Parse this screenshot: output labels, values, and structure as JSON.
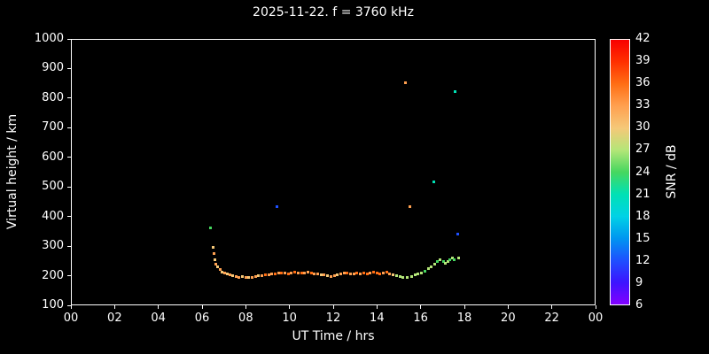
{
  "chart_data": {
    "type": "scatter",
    "title": "2025-11-22. f = 3760 kHz",
    "xlabel": "UT Time / hrs",
    "ylabel": "Virtual height / km",
    "xlim": [
      0,
      24
    ],
    "ylim": [
      100,
      1000
    ],
    "grid": false,
    "background_color": "#000000",
    "text_color": "#ffffff",
    "x_ticks": [
      {
        "value": 0,
        "label": "00"
      },
      {
        "value": 2,
        "label": "02"
      },
      {
        "value": 4,
        "label": "04"
      },
      {
        "value": 6,
        "label": "06"
      },
      {
        "value": 8,
        "label": "08"
      },
      {
        "value": 10,
        "label": "10"
      },
      {
        "value": 12,
        "label": "12"
      },
      {
        "value": 14,
        "label": "14"
      },
      {
        "value": 16,
        "label": "16"
      },
      {
        "value": 18,
        "label": "18"
      },
      {
        "value": 20,
        "label": "20"
      },
      {
        "value": 22,
        "label": "22"
      },
      {
        "value": 24,
        "label": "00"
      }
    ],
    "y_ticks": [
      100,
      200,
      300,
      400,
      500,
      600,
      700,
      800,
      900,
      1000
    ],
    "colorbar": {
      "label": "SNR / dB",
      "min": 6,
      "max": 42,
      "ticks": [
        6,
        9,
        12,
        15,
        18,
        21,
        24,
        27,
        30,
        33,
        36,
        39,
        42
      ],
      "stops": [
        [
          6,
          "#8200ff"
        ],
        [
          9,
          "#3c14ff"
        ],
        [
          12,
          "#1e50ff"
        ],
        [
          15,
          "#0096f0"
        ],
        [
          18,
          "#00d2e6"
        ],
        [
          21,
          "#00e1b4"
        ],
        [
          24,
          "#46d75f"
        ],
        [
          27,
          "#b4e678"
        ],
        [
          30,
          "#f5c878"
        ],
        [
          33,
          "#ffa050"
        ],
        [
          36,
          "#ff6e14"
        ],
        [
          39,
          "#ff3000"
        ],
        [
          42,
          "#f80000"
        ]
      ]
    },
    "points_format": "[ut_hour, virtual_height_km, snr_db]",
    "points": [
      [
        6.35,
        365,
        24
      ],
      [
        6.45,
        298,
        30
      ],
      [
        6.5,
        278,
        33
      ],
      [
        6.55,
        258,
        30
      ],
      [
        6.6,
        243,
        33
      ],
      [
        6.68,
        232,
        30
      ],
      [
        6.78,
        224,
        33
      ],
      [
        6.88,
        216,
        30
      ],
      [
        6.98,
        212,
        33
      ],
      [
        7.1,
        208,
        30
      ],
      [
        7.22,
        205,
        33
      ],
      [
        7.35,
        202,
        30
      ],
      [
        7.5,
        200,
        33
      ],
      [
        7.65,
        198,
        33
      ],
      [
        7.8,
        200,
        30
      ],
      [
        7.95,
        197,
        33
      ],
      [
        8.1,
        196,
        30
      ],
      [
        8.25,
        198,
        33
      ],
      [
        8.4,
        200,
        33
      ],
      [
        8.55,
        202,
        30
      ],
      [
        8.7,
        204,
        33
      ],
      [
        8.85,
        206,
        36
      ],
      [
        9.0,
        207,
        33
      ],
      [
        9.15,
        209,
        33
      ],
      [
        9.3,
        210,
        36
      ],
      [
        9.4,
        435,
        12
      ],
      [
        9.45,
        211,
        33
      ],
      [
        9.6,
        213,
        36
      ],
      [
        9.75,
        211,
        33
      ],
      [
        9.9,
        210,
        36
      ],
      [
        10.05,
        212,
        33
      ],
      [
        10.2,
        214,
        36
      ],
      [
        10.35,
        212,
        33
      ],
      [
        10.5,
        211,
        36
      ],
      [
        10.65,
        213,
        33
      ],
      [
        10.8,
        214,
        33
      ],
      [
        10.95,
        212,
        36
      ],
      [
        11.1,
        210,
        33
      ],
      [
        11.25,
        208,
        33
      ],
      [
        11.4,
        206,
        30
      ],
      [
        11.55,
        205,
        33
      ],
      [
        11.7,
        202,
        30
      ],
      [
        11.85,
        200,
        33
      ],
      [
        12.0,
        203,
        33
      ],
      [
        12.15,
        206,
        30
      ],
      [
        12.3,
        210,
        33
      ],
      [
        12.45,
        213,
        33
      ],
      [
        12.6,
        212,
        36
      ],
      [
        12.75,
        210,
        33
      ],
      [
        12.9,
        209,
        33
      ],
      [
        13.05,
        211,
        36
      ],
      [
        13.2,
        210,
        33
      ],
      [
        13.35,
        212,
        36
      ],
      [
        13.5,
        210,
        36
      ],
      [
        13.65,
        212,
        33
      ],
      [
        13.8,
        214,
        36
      ],
      [
        13.95,
        212,
        36
      ],
      [
        14.1,
        210,
        36
      ],
      [
        14.25,
        212,
        33
      ],
      [
        14.4,
        214,
        36
      ],
      [
        14.55,
        210,
        33
      ],
      [
        14.7,
        206,
        30
      ],
      [
        14.85,
        202,
        27
      ],
      [
        15.0,
        199,
        27
      ],
      [
        15.15,
        196,
        27
      ],
      [
        15.25,
        855,
        33
      ],
      [
        15.35,
        198,
        27
      ],
      [
        15.45,
        435,
        33
      ],
      [
        15.55,
        201,
        27
      ],
      [
        15.7,
        205,
        27
      ],
      [
        15.85,
        209,
        27
      ],
      [
        16.0,
        213,
        27
      ],
      [
        16.15,
        219,
        24
      ],
      [
        16.3,
        226,
        27
      ],
      [
        16.45,
        233,
        27
      ],
      [
        16.55,
        520,
        21
      ],
      [
        16.62,
        243,
        27
      ],
      [
        16.72,
        250,
        24
      ],
      [
        16.85,
        256,
        27
      ],
      [
        17.0,
        252,
        24
      ],
      [
        17.1,
        246,
        27
      ],
      [
        17.2,
        251,
        27
      ],
      [
        17.3,
        258,
        24
      ],
      [
        17.4,
        263,
        27
      ],
      [
        17.5,
        256,
        24
      ],
      [
        17.55,
        825,
        21
      ],
      [
        17.65,
        345,
        12
      ],
      [
        17.7,
        263,
        27
      ]
    ]
  }
}
